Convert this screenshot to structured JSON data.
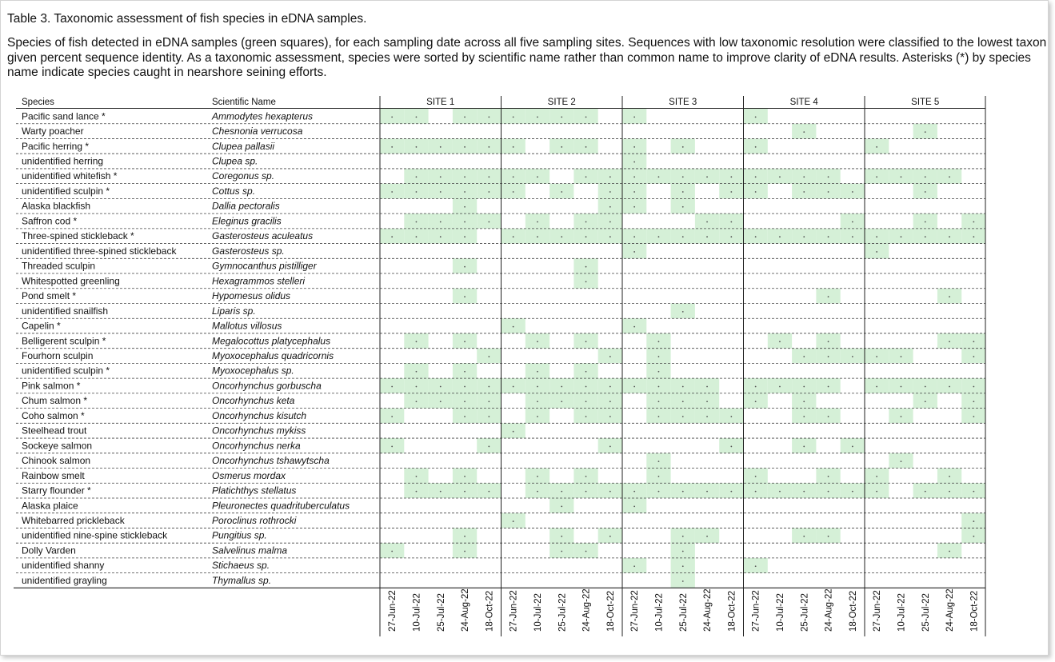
{
  "caption": {
    "title": "Table 3. Taxonomic assessment of fish species in eDNA samples.",
    "body": "Species of fish detected in eDNA samples (green squares), for each sampling date across all five sampling sites. Sequences with low taxonomic resolution were classified to the lowest taxon given percent sequence identity. As a taxonomic assessment, species were sorted by scientific name rather than common name to improve clarity of eDNA results. Asterisks (*) by species name indicate species caught in nearshore seining efforts."
  },
  "colors": {
    "detected": "#d5f0d7",
    "line": "#222222",
    "dash": "#444444",
    "text": "#111111"
  },
  "headers": {
    "species": "Species",
    "scientific": "Scientific Name"
  },
  "sites": [
    "SITE 1",
    "SITE 2",
    "SITE 3",
    "SITE 4",
    "SITE 5"
  ],
  "dates": [
    "27-Jun-22",
    "10-Jul-22",
    "25-Jul-22",
    "24-Aug-22",
    "18-Oct-22"
  ],
  "rows": [
    {
      "common": "Pacific sand lance *",
      "sci": "Ammodytes hexapterus",
      "det": "11011 11110 10000 10000 00000"
    },
    {
      "common": "Warty poacher",
      "sci": "Chesnonia verrucosa",
      "det": "00000 00000 00000 00100 00100"
    },
    {
      "common": "Pacific herring *",
      "sci": "Clupea pallasii",
      "det": "11111 10110 10100 10000 10000"
    },
    {
      "common": "unidentified herring",
      "sci": "Clupea sp.",
      "det": "00000 00000 10000 00000 00000"
    },
    {
      "common": "unidentified whitefish *",
      "sci": "Coregonus sp.",
      "det": "01111 11011 11111 11110 11110"
    },
    {
      "common": "unidentified sculpin *",
      "sci": "Cottus sp.",
      "det": "11111 10101 10101 10111 00100"
    },
    {
      "common": "Alaska blackfish",
      "sci": "Dallia pectoralis",
      "det": "00010 00001 10100 00000 00000"
    },
    {
      "common": "Saffron cod *",
      "sci": "Eleginus gracilis",
      "det": "01111 01011 00011 00001 00101"
    },
    {
      "common": "Three-spined stickleback *",
      "sci": "Gasterosteus aculeatus",
      "det": "11110 11111 11111 11111 11111"
    },
    {
      "common": "unidentified three-spined stickleback",
      "sci": "Gasterosteus sp.",
      "det": "00000 00000 10000 00000 10000"
    },
    {
      "common": "Threaded sculpin",
      "sci": "Gymnocanthus pistilliger",
      "det": "00010 00010 00000 00000 00000"
    },
    {
      "common": "Whitespotted greenling",
      "sci": "Hexagrammos stelleri",
      "det": "00000 00010 00000 00000 00000"
    },
    {
      "common": "Pond smelt *",
      "sci": "Hypomesus olidus",
      "det": "00010 00000 00000 00010 00010"
    },
    {
      "common": "unidentified snailfish",
      "sci": "Liparis sp.",
      "det": "00000 00000 00100 00000 00000"
    },
    {
      "common": "Capelin *",
      "sci": "Mallotus villosus",
      "det": "00000 10000 10000 00000 00000"
    },
    {
      "common": "Belligerent sculpin *",
      "sci": "Megalocottus platycephalus",
      "det": "01010 01010 01000 01010 00011"
    },
    {
      "common": "Fourhorn sculpin",
      "sci": "Myoxocephalus quadricornis",
      "det": "00001 00001 01000 00111 11001"
    },
    {
      "common": "unidentified sculpin *",
      "sci": "Myoxocephalus sp.",
      "det": "01010 01010 01000 00000 00000"
    },
    {
      "common": "Pink salmon *",
      "sci": "Oncorhynchus gorbuscha",
      "det": "11111 11111 11110 11110 11111"
    },
    {
      "common": "Chum salmon *",
      "sci": "Oncorhynchus keta",
      "det": "01111 01111 01110 10100 00101"
    },
    {
      "common": "Coho salmon *",
      "sci": "Oncorhynchus kisutch",
      "det": "10011 01011 01111 00110 01001"
    },
    {
      "common": "Steelhead trout",
      "sci": "Oncorhynchus mykiss",
      "det": "00000 10000 00000 00000 00000"
    },
    {
      "common": "Sockeye salmon",
      "sci": "Oncorhynchus nerka",
      "det": "10001 00001 00001 00101 00000"
    },
    {
      "common": "Chinook salmon",
      "sci": "Oncorhynchus tshawytscha",
      "det": "00000 00000 01000 00000 01000"
    },
    {
      "common": "Rainbow smelt",
      "sci": "Osmerus mordax",
      "det": "01010 01010 01000 10010 10010"
    },
    {
      "common": "Starry flounder *",
      "sci": "Platichthys stellatus",
      "det": "01111 01111 11111 11111 10111"
    },
    {
      "common": "Alaska plaice",
      "sci": "Pleuronectes quadrituberculatus",
      "det": "00000 00100 10000 00000 00000"
    },
    {
      "common": "Whitebarred prickleback",
      "sci": "Poroclinus rothrocki",
      "det": "00000 10000 00000 00000 00001"
    },
    {
      "common": "unidentified nine-spine stickleback",
      "sci": "Pungitius sp.",
      "det": "00010 00101 00110 00110 00001"
    },
    {
      "common": "Dolly Varden",
      "sci": "Salvelinus malma",
      "det": "10010 00110 00100 00000 00010"
    },
    {
      "common": "unidentified shanny",
      "sci": "Stichaeus sp.",
      "det": "00000 00000 10100 10000 00000"
    },
    {
      "common": "unidentified grayling",
      "sci": "Thymallus sp.",
      "det": "00000 00000 00100 00000 00000"
    }
  ]
}
